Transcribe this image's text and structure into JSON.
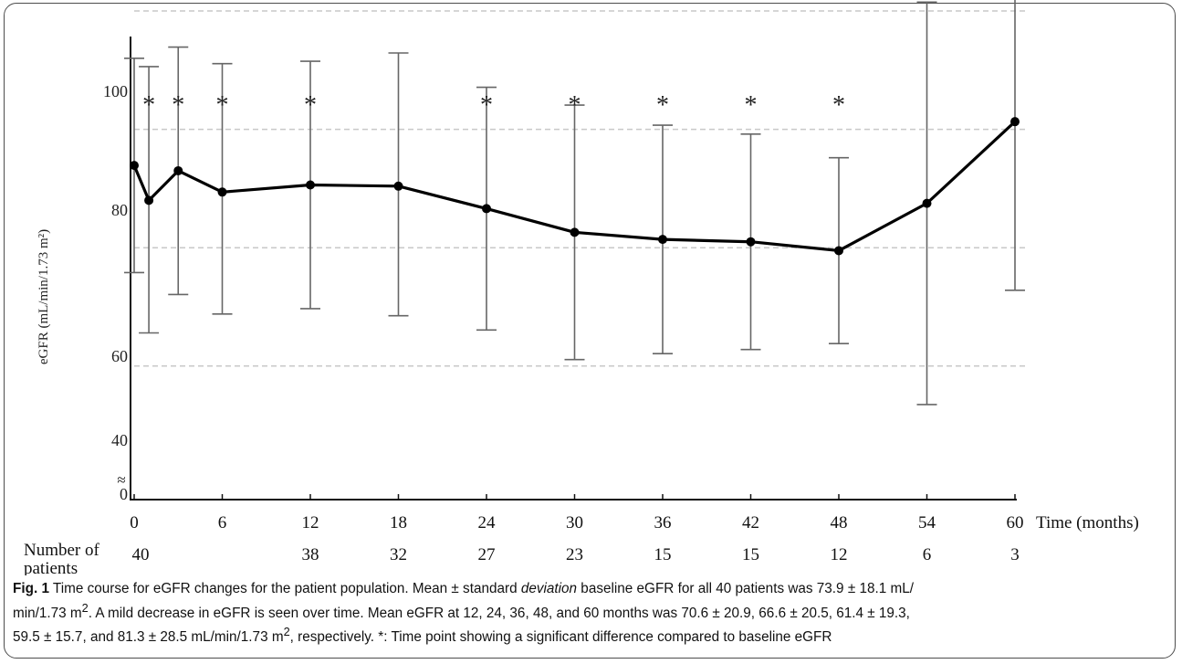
{
  "chart_data": {
    "type": "line",
    "ylabel": "eGFR (mL/min/1.73 m²)",
    "xlabel": "Time (months)",
    "x_ticks": [
      0,
      6,
      12,
      18,
      24,
      30,
      36,
      42,
      48,
      54,
      60
    ],
    "y_ticks": [
      0,
      40,
      60,
      80,
      100
    ],
    "y_axis_break": true,
    "grid": "horizontal dashed",
    "series": [
      {
        "points": [
          {
            "x": 0,
            "y": 73.9,
            "lower": 55.8,
            "upper": 92.0
          },
          {
            "x": 1,
            "y": 68.0,
            "lower": 45.6,
            "upper": 90.6
          },
          {
            "x": 3,
            "y": 73.0,
            "lower": 52.1,
            "upper": 93.9
          },
          {
            "x": 6,
            "y": 69.4,
            "lower": 48.8,
            "upper": 91.1
          },
          {
            "x": 12,
            "y": 70.6,
            "lower": 49.7,
            "upper": 91.5
          },
          {
            "x": 18,
            "y": 70.4,
            "lower": 48.5,
            "upper": 92.9
          },
          {
            "x": 24,
            "y": 66.6,
            "lower": 46.1,
            "upper": 87.1
          },
          {
            "x": 30,
            "y": 62.6,
            "lower": 41.1,
            "upper": 84.1
          },
          {
            "x": 36,
            "y": 61.4,
            "lower": 42.1,
            "upper": 80.7
          },
          {
            "x": 42,
            "y": 61.0,
            "lower": 42.8,
            "upper": 79.2
          },
          {
            "x": 48,
            "y": 59.5,
            "lower": 43.8,
            "upper": 75.2
          },
          {
            "x": 54,
            "y": 67.5,
            "lower": 33.5,
            "upper": 101.5
          },
          {
            "x": 60,
            "y": 81.3,
            "lower": 52.8,
            "upper": 109.8
          }
        ]
      }
    ],
    "significant_marker": "*",
    "significant_x": [
      1,
      3,
      6,
      12,
      24,
      30,
      36,
      42,
      48
    ],
    "patients_label": "Number of patients",
    "patients": [
      {
        "x": 0,
        "n": "40"
      },
      {
        "x": 12,
        "n": "38"
      },
      {
        "x": 18,
        "n": "32"
      },
      {
        "x": 24,
        "n": "27"
      },
      {
        "x": 30,
        "n": "23"
      },
      {
        "x": 36,
        "n": "15"
      },
      {
        "x": 42,
        "n": "15"
      },
      {
        "x": 48,
        "n": "12"
      },
      {
        "x": 54,
        "n": "6"
      },
      {
        "x": 60,
        "n": "3"
      }
    ]
  },
  "caption": {
    "label": "Fig. 1",
    "line1_a": " Time course for eGFR changes for the patient population. Mean ± standard ",
    "line1_italic": "deviation",
    "line1_b": " baseline eGFR for all 40 patients was 73.9 ± 18.1 mL/",
    "line2_a": "min/1.73 m",
    "line2_sup": "2",
    "line2_b": ". A mild decrease in eGFR is seen over time. Mean eGFR at 12, 24, 36, 48, and 60 months was 70.6 ± 20.9, 66.6 ± 20.5, 61.4 ± 19.3,",
    "line3_a": "59.5 ± 15.7, and 81.3 ± 28.5 mL/min/1.73 m",
    "line3_sup": "2",
    "line3_b": ", respectively. *: Time point showing a significant difference compared to baseline eGFR"
  }
}
